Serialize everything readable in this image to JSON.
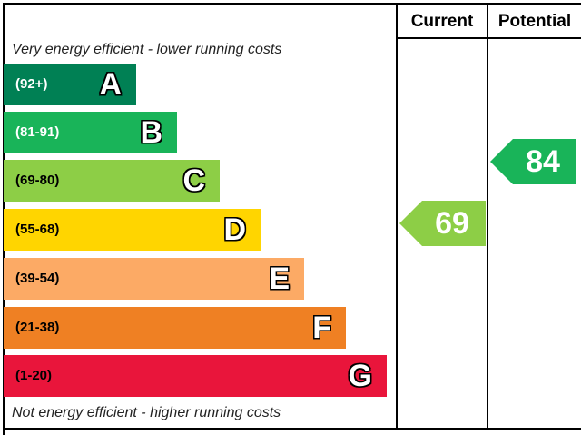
{
  "header": {
    "current_label": "Current",
    "potential_label": "Potential"
  },
  "notes": {
    "top": "Very energy efficient - lower running costs",
    "bottom": "Not energy efficient - higher running costs"
  },
  "chart_data": {
    "type": "bar",
    "bands": [
      {
        "letter": "A",
        "range": "(92+)",
        "color": "#008054",
        "text_color": "#ffffff"
      },
      {
        "letter": "B",
        "range": "(81-91)",
        "color": "#19b459",
        "text_color": "#ffffff"
      },
      {
        "letter": "C",
        "range": "(69-80)",
        "color": "#8dce46",
        "text_color": "#000000"
      },
      {
        "letter": "D",
        "range": "(55-68)",
        "color": "#ffd500",
        "text_color": "#000000"
      },
      {
        "letter": "E",
        "range": "(39-54)",
        "color": "#fcaa65",
        "text_color": "#000000"
      },
      {
        "letter": "F",
        "range": "(21-38)",
        "color": "#ef8023",
        "text_color": "#000000"
      },
      {
        "letter": "G",
        "range": "(1-20)",
        "color": "#e9153b",
        "text_color": "#000000"
      }
    ],
    "current": {
      "value": 69,
      "band": "C",
      "color": "#8dce46"
    },
    "potential": {
      "value": 84,
      "band": "B",
      "color": "#19b459"
    }
  }
}
